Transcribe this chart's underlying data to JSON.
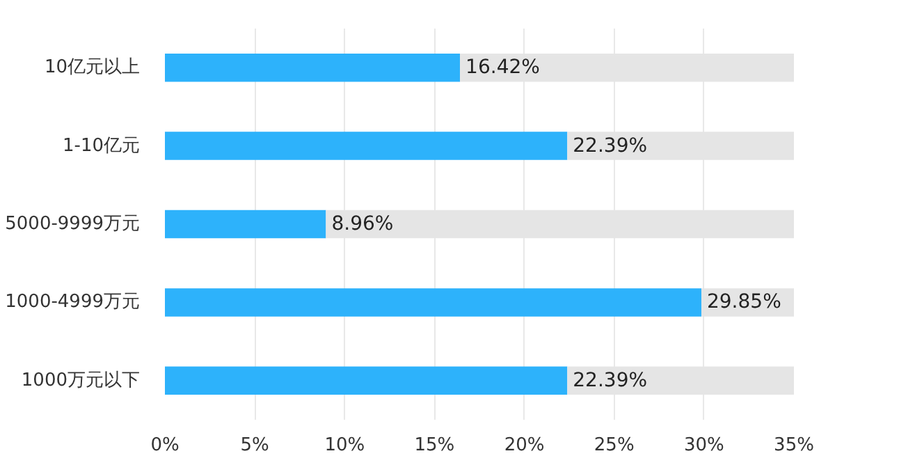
{
  "chart_data": {
    "type": "bar",
    "orientation": "horizontal",
    "stacked": true,
    "categories": [
      "10亿元以上",
      "1-10亿元",
      "5000-9999万元",
      "1000-4999万元",
      "1000万元以下"
    ],
    "series": [
      {
        "color": "#2db2fb",
        "values": [
          16.42,
          22.39,
          8.96,
          29.85,
          22.39
        ],
        "value_labels": [
          "16.42%",
          "22.39%",
          "8.96%",
          "29.85%",
          "22.39%"
        ]
      },
      {
        "color": "#e5e5e5",
        "values": [
          18.58,
          12.61,
          26.04,
          5.15,
          12.61
        ]
      }
    ],
    "xlim": [
      0,
      35
    ],
    "xticks": [
      {
        "value": 0,
        "label": "0%"
      },
      {
        "value": 5,
        "label": "5%"
      },
      {
        "value": 10,
        "label": "10%"
      },
      {
        "value": 15,
        "label": "15%"
      },
      {
        "value": 20,
        "label": "20%"
      },
      {
        "value": 25,
        "label": "25%"
      },
      {
        "value": 30,
        "label": "30%"
      },
      {
        "value": 35,
        "label": "35%"
      }
    ],
    "grid": "x"
  }
}
